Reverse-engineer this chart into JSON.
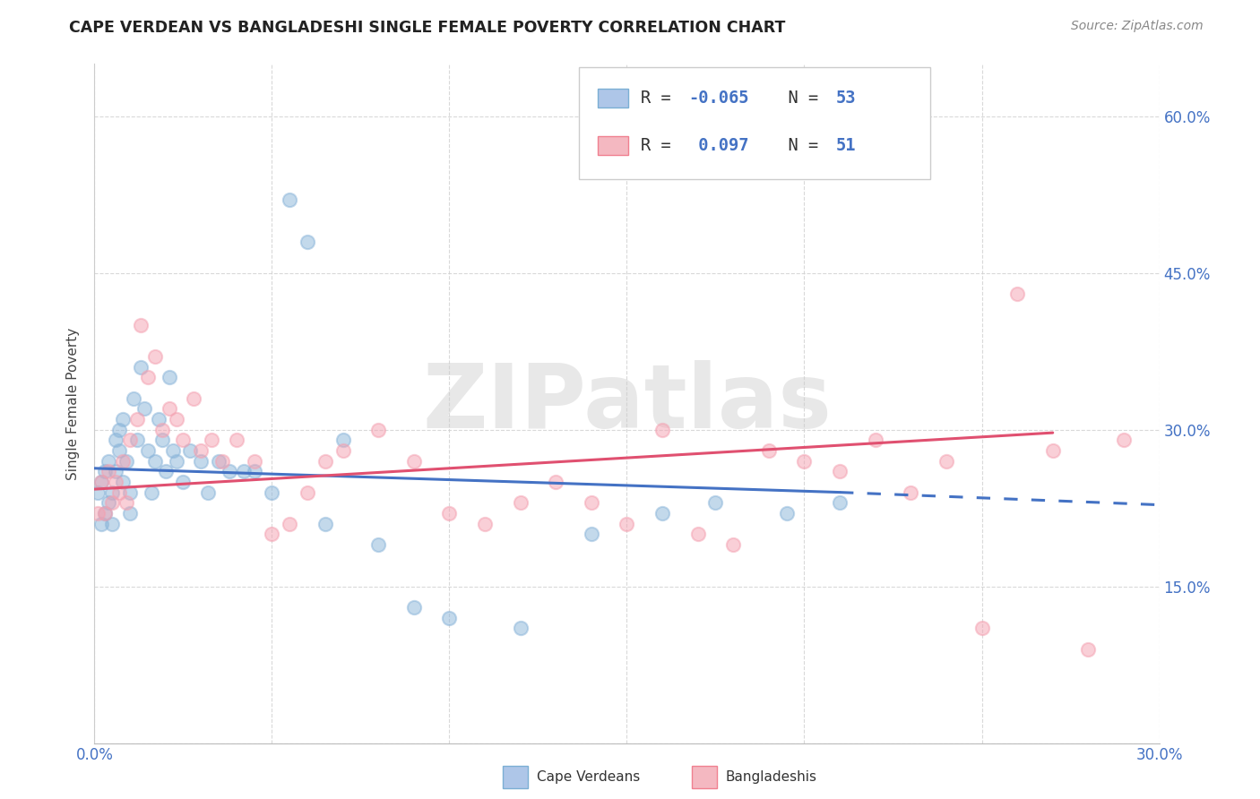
{
  "title": "CAPE VERDEAN VS BANGLADESHI SINGLE FEMALE POVERTY CORRELATION CHART",
  "source": "Source: ZipAtlas.com",
  "ylabel": "Single Female Poverty",
  "x_range": [
    0.0,
    0.3
  ],
  "y_range": [
    0.0,
    0.65
  ],
  "y_ticks": [
    0.0,
    0.15,
    0.3,
    0.45,
    0.6
  ],
  "cape_verdean_color": "#89b4d9",
  "bangladeshi_color": "#f4a0b0",
  "trend_cape_color": "#4472c4",
  "trend_bang_color": "#e05070",
  "legend_sq_blue": "#aec6e8",
  "legend_sq_pink": "#f4b8c1",
  "legend_text_color": "#4472c4",
  "watermark_text": "ZIPatlas",
  "cv_x": [
    0.001,
    0.002,
    0.002,
    0.003,
    0.003,
    0.004,
    0.004,
    0.005,
    0.005,
    0.006,
    0.006,
    0.007,
    0.007,
    0.008,
    0.008,
    0.009,
    0.01,
    0.01,
    0.011,
    0.012,
    0.013,
    0.014,
    0.015,
    0.016,
    0.017,
    0.018,
    0.019,
    0.02,
    0.021,
    0.022,
    0.023,
    0.025,
    0.027,
    0.03,
    0.032,
    0.035,
    0.038,
    0.042,
    0.045,
    0.05,
    0.055,
    0.06,
    0.065,
    0.07,
    0.08,
    0.09,
    0.1,
    0.12,
    0.14,
    0.16,
    0.175,
    0.195,
    0.21
  ],
  "cv_y": [
    0.24,
    0.21,
    0.25,
    0.22,
    0.26,
    0.23,
    0.27,
    0.21,
    0.24,
    0.29,
    0.26,
    0.3,
    0.28,
    0.25,
    0.31,
    0.27,
    0.24,
    0.22,
    0.33,
    0.29,
    0.36,
    0.32,
    0.28,
    0.24,
    0.27,
    0.31,
    0.29,
    0.26,
    0.35,
    0.28,
    0.27,
    0.25,
    0.28,
    0.27,
    0.24,
    0.27,
    0.26,
    0.26,
    0.26,
    0.24,
    0.52,
    0.48,
    0.21,
    0.29,
    0.19,
    0.13,
    0.12,
    0.11,
    0.2,
    0.22,
    0.23,
    0.22,
    0.23
  ],
  "bd_x": [
    0.001,
    0.002,
    0.003,
    0.004,
    0.005,
    0.006,
    0.007,
    0.008,
    0.009,
    0.01,
    0.012,
    0.013,
    0.015,
    0.017,
    0.019,
    0.021,
    0.023,
    0.025,
    0.028,
    0.03,
    0.033,
    0.036,
    0.04,
    0.045,
    0.05,
    0.055,
    0.06,
    0.065,
    0.07,
    0.08,
    0.09,
    0.1,
    0.11,
    0.12,
    0.13,
    0.14,
    0.15,
    0.16,
    0.17,
    0.18,
    0.19,
    0.2,
    0.21,
    0.22,
    0.23,
    0.24,
    0.25,
    0.26,
    0.27,
    0.28,
    0.29
  ],
  "bd_y": [
    0.22,
    0.25,
    0.22,
    0.26,
    0.23,
    0.25,
    0.24,
    0.27,
    0.23,
    0.29,
    0.31,
    0.4,
    0.35,
    0.37,
    0.3,
    0.32,
    0.31,
    0.29,
    0.33,
    0.28,
    0.29,
    0.27,
    0.29,
    0.27,
    0.2,
    0.21,
    0.24,
    0.27,
    0.28,
    0.3,
    0.27,
    0.22,
    0.21,
    0.23,
    0.25,
    0.23,
    0.21,
    0.3,
    0.2,
    0.19,
    0.28,
    0.27,
    0.26,
    0.29,
    0.24,
    0.27,
    0.11,
    0.43,
    0.28,
    0.09,
    0.29
  ]
}
